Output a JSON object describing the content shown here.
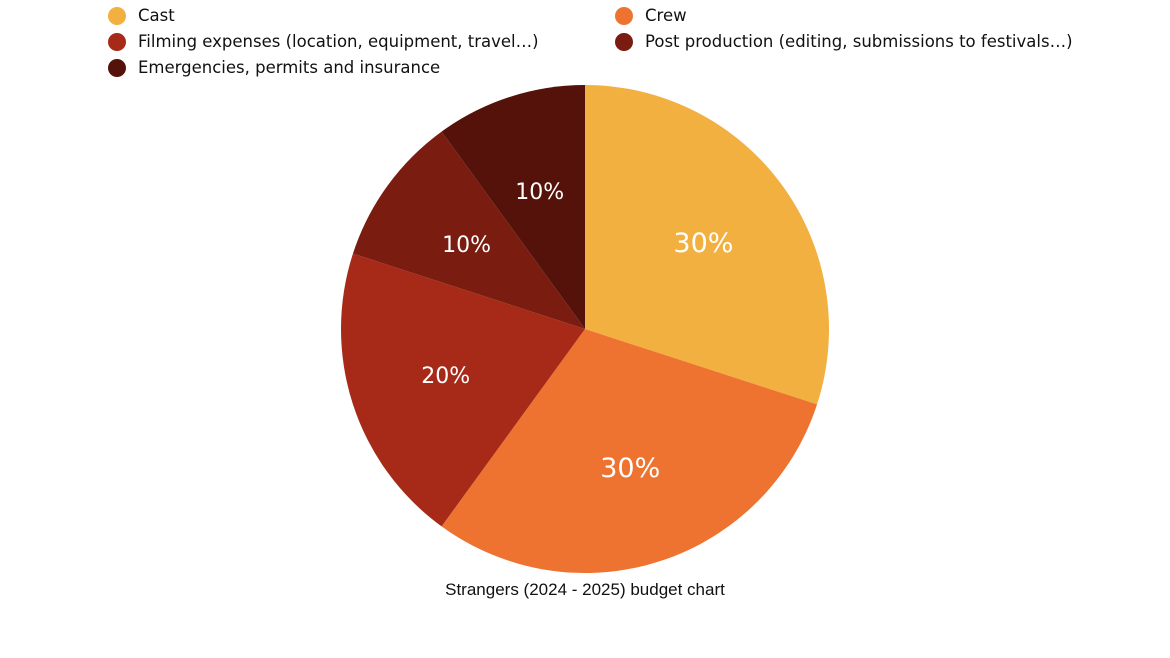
{
  "chart_data": {
    "type": "pie",
    "title": "Strangers (2024 - 2025) budget chart",
    "legend_position": "top",
    "start_angle": "12 o'clock, clockwise",
    "slices": [
      {
        "name": "Cast",
        "value": 30,
        "label": "30%",
        "color": "#F2B040"
      },
      {
        "name": "Crew",
        "value": 30,
        "label": "30%",
        "color": "#EE7330"
      },
      {
        "name": "Filming expenses (location, equipment, travel…)",
        "value": 20,
        "label": "20%",
        "color": "#A62A17"
      },
      {
        "name": "Post production (editing, submissions to festivals…)",
        "value": 10,
        "label": "10%",
        "color": "#7A1D10"
      },
      {
        "name": "Emergencies, permits and insurance",
        "value": 10,
        "label": "10%",
        "color": "#55120A"
      }
    ]
  }
}
